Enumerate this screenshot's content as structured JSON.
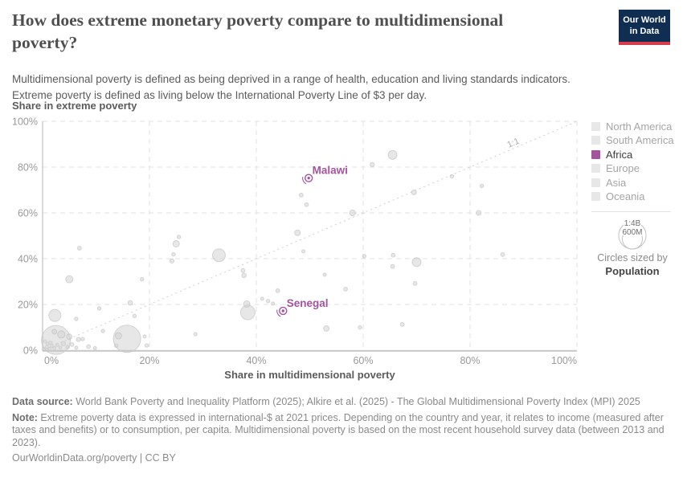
{
  "header": {
    "title_lines": [
      "How does extreme monetary poverty compare to multidimensional",
      "poverty?"
    ],
    "subtitle_lines": [
      "Multidimensional poverty is defined as being deprived in a range of health, education and living standards indicators.",
      "Extreme poverty is defined as living below the International Poverty Line of $3 per day."
    ],
    "logo": {
      "line1": "Our World",
      "line2": "in Data"
    }
  },
  "chart_data": {
    "type": "scatter",
    "title": "How does extreme monetary poverty compare to multidimensional poverty?",
    "xlabel": "Share in multidimensional poverty",
    "ylabel": "Share in extreme poverty",
    "xlim": [
      0,
      100
    ],
    "ylim": [
      0,
      100
    ],
    "x_ticks": [
      "0%",
      "20%",
      "40%",
      "60%",
      "80%",
      "100%"
    ],
    "y_ticks": [
      "0%",
      "20%",
      "40%",
      "60%",
      "80%",
      "100%"
    ],
    "grid": true,
    "unit": "percent",
    "bubble_size_meaning": "population",
    "diagonal": {
      "label": "1:1"
    },
    "colors": {
      "point": "#d4d4d4",
      "point_stroke": "#bdbdbd",
      "highlight": "#a2559c",
      "grid": "#e2e2e2",
      "axis": "#c6c6c6",
      "tick_text": "#999999"
    },
    "series": [
      {
        "name": "countries",
        "points": [
          {
            "x": 0.3,
            "y": 0.5,
            "r": 2
          },
          {
            "x": 0.8,
            "y": 1.3,
            "r": 2.2
          },
          {
            "x": 1.3,
            "y": 0.6,
            "r": 2
          },
          {
            "x": 1.7,
            "y": 1.9,
            "r": 2.4
          },
          {
            "x": 2.2,
            "y": 0.9,
            "r": 2
          },
          {
            "x": 2.7,
            "y": 2.4,
            "r": 2.2
          },
          {
            "x": 3.3,
            "y": 1.2,
            "r": 2
          },
          {
            "x": 0.9,
            "y": 2.9,
            "r": 2
          },
          {
            "x": 0.5,
            "y": 3.9,
            "r": 2
          },
          {
            "x": 1.5,
            "y": 3.3,
            "r": 2.2
          },
          {
            "x": 3.9,
            "y": 2.9,
            "r": 2.8
          },
          {
            "x": 4.7,
            "y": 1.4,
            "r": 2.2
          },
          {
            "x": 5.5,
            "y": 2.5,
            "r": 2.4
          },
          {
            "x": 6.3,
            "y": 1.1,
            "r": 2
          },
          {
            "x": 2.5,
            "y": 4.5,
            "r": 18
          },
          {
            "x": 3.5,
            "y": 6.9,
            "r": 4.6
          },
          {
            "x": 5,
            "y": 5.9,
            "r": 3.4
          },
          {
            "x": 6.7,
            "y": 4.7,
            "r": 2.6
          },
          {
            "x": 2.2,
            "y": 8.1,
            "r": 3
          },
          {
            "x": 7.5,
            "y": 4.9,
            "r": 2.2
          },
          {
            "x": 8.6,
            "y": 1.6,
            "r": 2.4
          },
          {
            "x": 9.8,
            "y": 0.9,
            "r": 2
          },
          {
            "x": 11.3,
            "y": 8.4,
            "r": 2.2
          },
          {
            "x": 6.3,
            "y": 13.7,
            "r": 2.2
          },
          {
            "x": 2.3,
            "y": 15.2,
            "r": 7.5
          },
          {
            "x": 10.6,
            "y": 18.3,
            "r": 2.2
          },
          {
            "x": 13.8,
            "y": 2,
            "r": 2.2
          },
          {
            "x": 15.8,
            "y": 5,
            "r": 17
          },
          {
            "x": 14.2,
            "y": 6.3,
            "r": 4
          },
          {
            "x": 16.4,
            "y": 20.7,
            "r": 2.8
          },
          {
            "x": 17.2,
            "y": 15,
            "r": 2.2
          },
          {
            "x": 19.1,
            "y": 6,
            "r": 2
          },
          {
            "x": 19.5,
            "y": 2.1,
            "r": 2.2
          },
          {
            "x": 18.6,
            "y": 31,
            "r": 2.2
          },
          {
            "x": 5,
            "y": 31,
            "r": 4.5
          },
          {
            "x": 6.9,
            "y": 44.6,
            "r": 2.4
          },
          {
            "x": 24.2,
            "y": 39,
            "r": 2.6
          },
          {
            "x": 24.5,
            "y": 41.9,
            "r": 2.2
          },
          {
            "x": 25,
            "y": 46.5,
            "r": 4
          },
          {
            "x": 25.5,
            "y": 49.5,
            "r": 2.2
          },
          {
            "x": 28.6,
            "y": 7,
            "r": 2
          },
          {
            "x": 33,
            "y": 41.5,
            "r": 8
          },
          {
            "x": 37.5,
            "y": 34.8,
            "r": 2.4
          },
          {
            "x": 37.7,
            "y": 32.7,
            "r": 2.8
          },
          {
            "x": 38.4,
            "y": 16.5,
            "r": 9
          },
          {
            "x": 38.2,
            "y": 20.2,
            "r": 4
          },
          {
            "x": 41.1,
            "y": 22.5,
            "r": 2
          },
          {
            "x": 42.2,
            "y": 21.5,
            "r": 2.2
          },
          {
            "x": 43.1,
            "y": 20.4,
            "r": 2
          },
          {
            "x": 44,
            "y": 26,
            "r": 2.4
          },
          {
            "x": 47.7,
            "y": 51.3,
            "r": 3.5
          },
          {
            "x": 48.8,
            "y": 43.2,
            "r": 2
          },
          {
            "x": 49.4,
            "y": 63.6,
            "r": 2.4
          },
          {
            "x": 48.4,
            "y": 67.8,
            "r": 2.4
          },
          {
            "x": 52.8,
            "y": 33,
            "r": 2
          },
          {
            "x": 53.1,
            "y": 9.5,
            "r": 3.4
          },
          {
            "x": 56.7,
            "y": 26.7,
            "r": 2.4
          },
          {
            "x": 58,
            "y": 60,
            "r": 3.6
          },
          {
            "x": 59.4,
            "y": 10,
            "r": 2.2
          },
          {
            "x": 60.2,
            "y": 41.1,
            "r": 2.2
          },
          {
            "x": 61.7,
            "y": 81.1,
            "r": 2.6
          },
          {
            "x": 65.5,
            "y": 85.3,
            "r": 5.5
          },
          {
            "x": 65.6,
            "y": 41.5,
            "r": 2.4
          },
          {
            "x": 65.5,
            "y": 36.6,
            "r": 2.4
          },
          {
            "x": 67.3,
            "y": 11.3,
            "r": 2.4
          },
          {
            "x": 69.5,
            "y": 69,
            "r": 3
          },
          {
            "x": 69.7,
            "y": 29.2,
            "r": 2.4
          },
          {
            "x": 70,
            "y": 38.5,
            "r": 5.5
          },
          {
            "x": 76.6,
            "y": 76,
            "r": 2.2
          },
          {
            "x": 81.6,
            "y": 60,
            "r": 3
          },
          {
            "x": 82.2,
            "y": 71.8,
            "r": 2.2
          },
          {
            "x": 86.1,
            "y": 41.8,
            "r": 2.4
          }
        ]
      },
      {
        "name": "highlighted-africa",
        "points": [
          {
            "label": "Malawi",
            "x": 49.8,
            "y": 75.2,
            "r": 2
          },
          {
            "label": "Senegal",
            "x": 45,
            "y": 17.2,
            "r": 2
          }
        ]
      }
    ]
  },
  "legend": {
    "items": [
      {
        "label": "North America",
        "color": "#e7e7e7",
        "text_color": "#a5a5a5",
        "active": false
      },
      {
        "label": "South America",
        "color": "#e7e7e7",
        "text_color": "#a5a5a5",
        "active": false
      },
      {
        "label": "Africa",
        "color": "#a2559c",
        "text_color": "#3b3b3b",
        "active": true
      },
      {
        "label": "Europe",
        "color": "#e7e7e7",
        "text_color": "#a5a5a5",
        "active": false
      },
      {
        "label": "Asia",
        "color": "#e7e7e7",
        "text_color": "#a5a5a5",
        "active": false
      },
      {
        "label": "Oceania",
        "color": "#e7e7e7",
        "text_color": "#a5a5a5",
        "active": false
      }
    ],
    "size_legend": {
      "outer_label": "1:4B",
      "inner_label": "600M",
      "caption": "Circles sized by",
      "caption_bold": "Population"
    }
  },
  "footer": {
    "data_source_label": "Data source:",
    "data_source_text": " World Bank Poverty and Inequality Platform (2025); Alkire et al. (2025) - The Global Multidimensional Poverty Index (MPI) 2025",
    "note_label": "Note:",
    "note_text": " Extreme poverty data is expressed in international-$ at 2021 prices. Depending on the country and year, it relates to income (measured after taxes and benefits) or to consumption, per capita. Multidimensional poverty is based on the most recent household survey data (between 2013 and 2023).",
    "license_text": "OurWorldinData.org/poverty | CC BY"
  }
}
